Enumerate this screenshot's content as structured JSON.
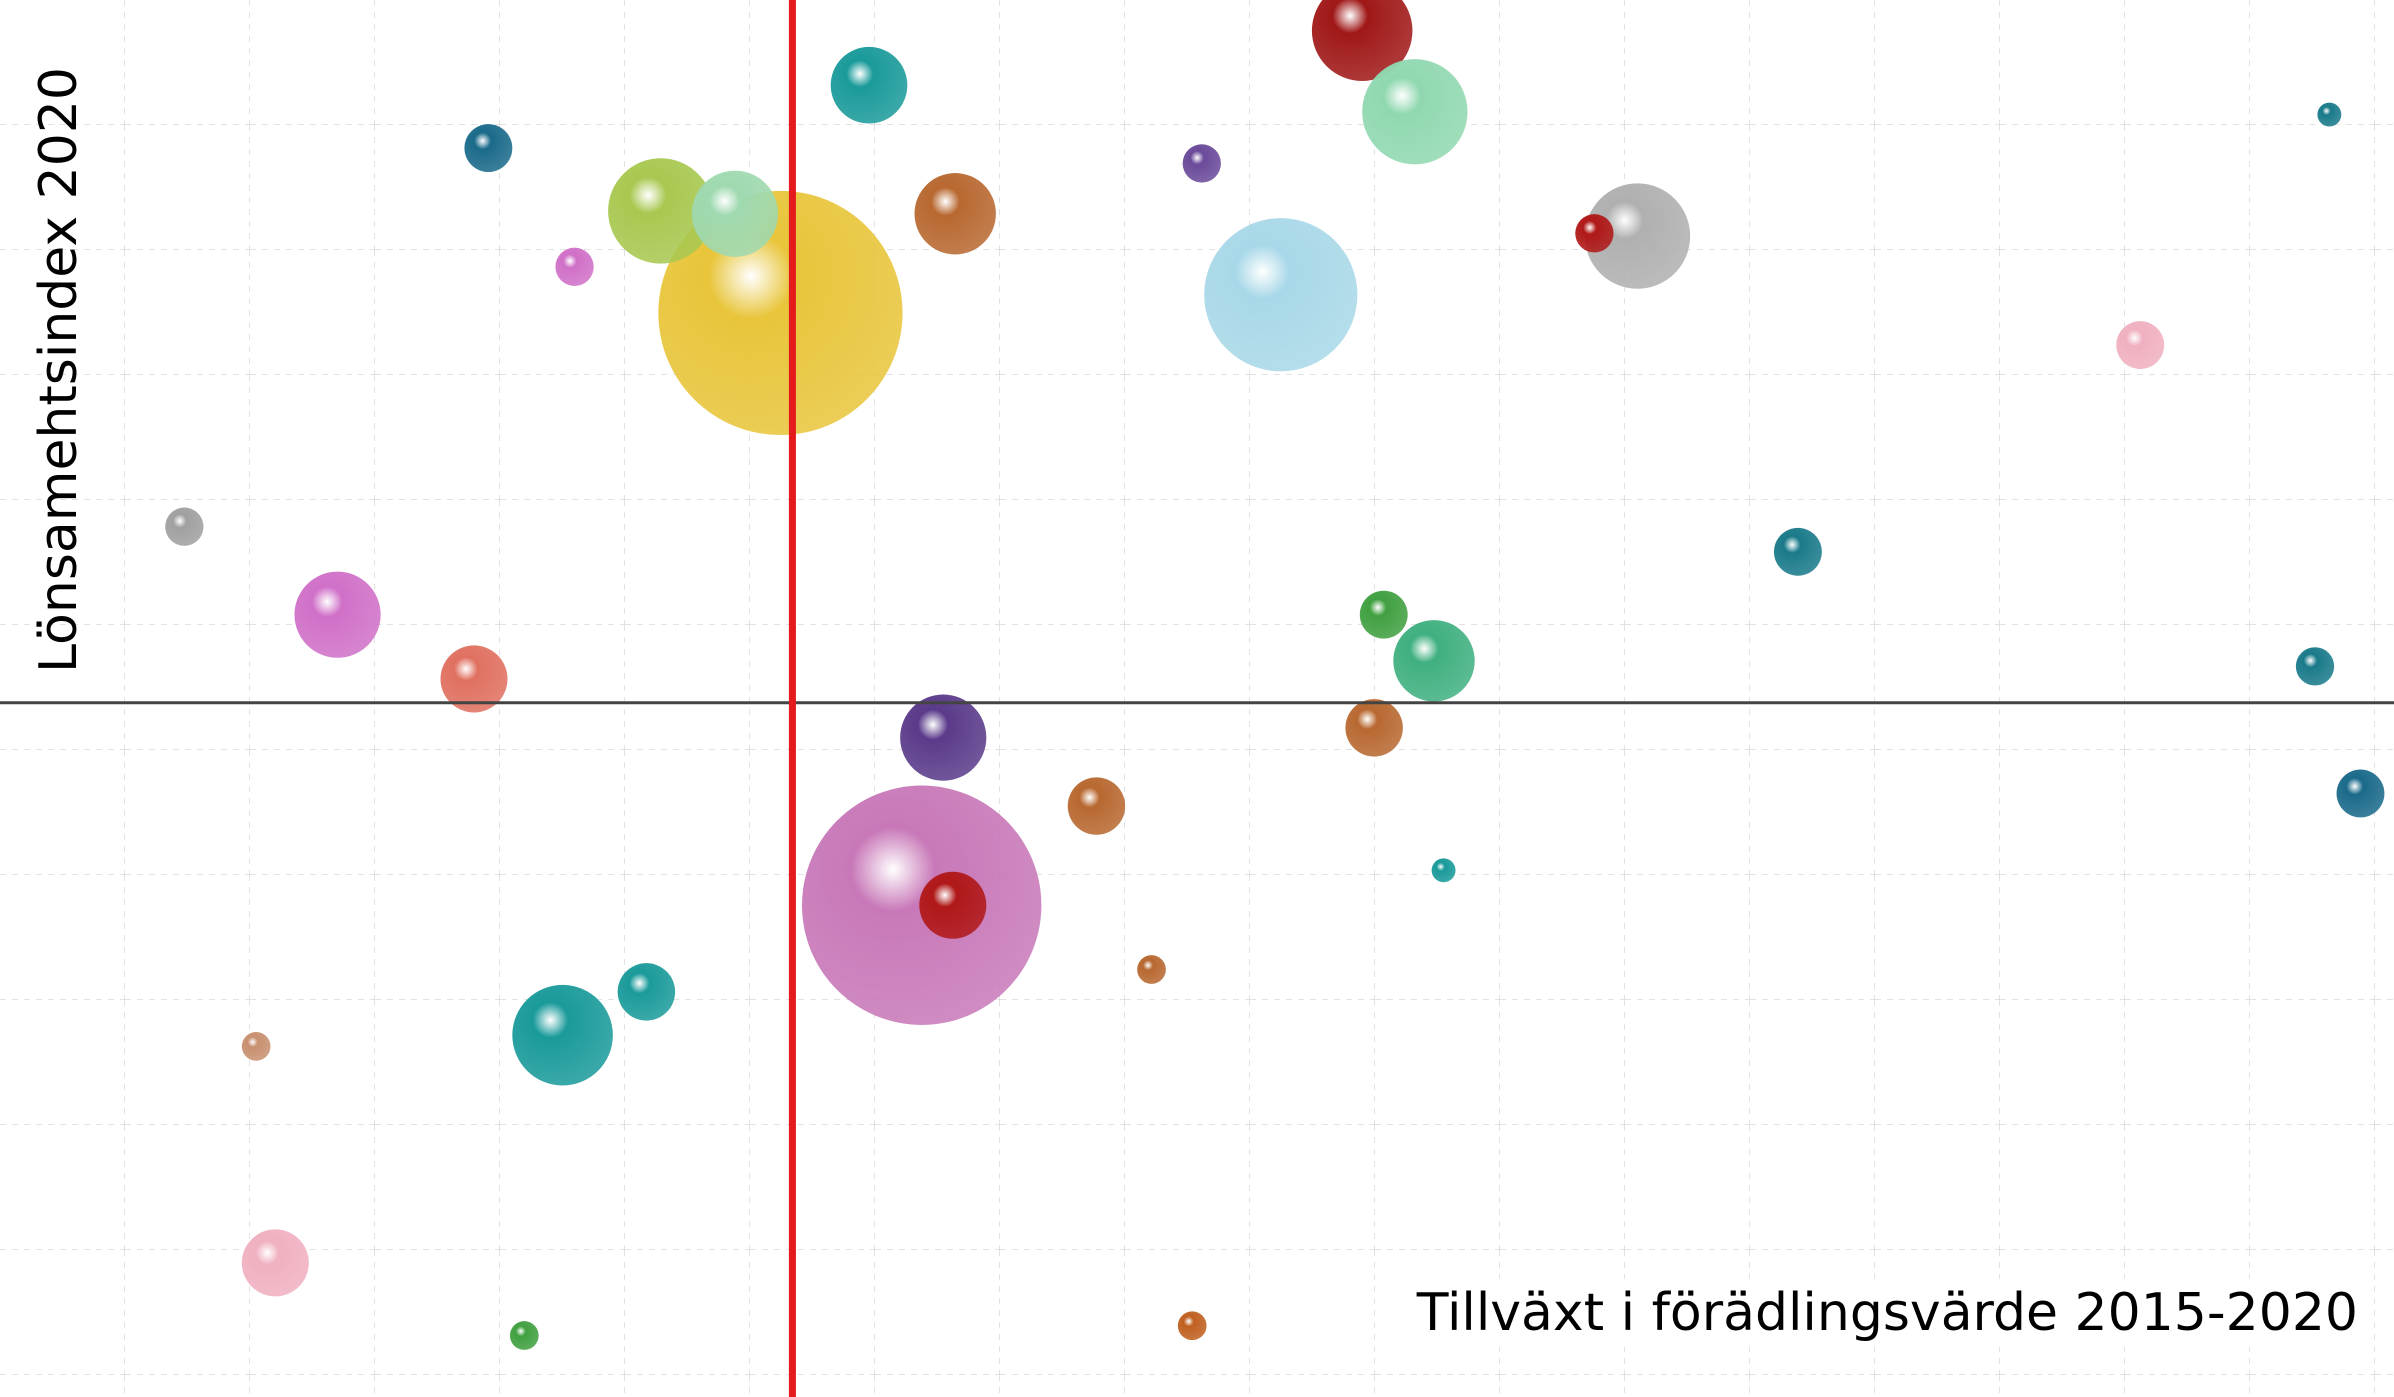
{
  "chart_data": {
    "type": "scatter",
    "x_label": "Tillväxt i förädlingsvärde 2015-2020",
    "y_label": "Lönsamehtsindex 2020",
    "xlim": [
      0,
      100
    ],
    "ylim": [
      0,
      100
    ],
    "x_reference": 33.1,
    "x_reference_color": "#e41a1c",
    "y_reference": 49.7,
    "y_reference_color": "#444444",
    "grid": true,
    "x": [
      32.6,
      38.5,
      27.6,
      30.7,
      36.3,
      56.9,
      59.1,
      68.4,
      53.5,
      39.9,
      14.1,
      23.5,
      27.0,
      11.5,
      20.4,
      19.8,
      39.4,
      59.9,
      57.4,
      45.8,
      39.8,
      7.7,
      75.1,
      98.6,
      96.7,
      89.4,
      49.8,
      21.9,
      10.7,
      66.6,
      50.2,
      57.8,
      24.0,
      97.3,
      48.1,
      60.3
    ],
    "values": [
      77.6,
      35.2,
      84.9,
      84.7,
      93.9,
      97.8,
      92.0,
      83.1,
      78.9,
      84.7,
      56.0,
      25.9,
      29.0,
      9.6,
      89.4,
      51.4,
      47.2,
      52.7,
      47.9,
      42.3,
      35.2,
      62.3,
      60.5,
      43.2,
      52.3,
      75.3,
      5.1,
      4.4,
      25.1,
      83.3,
      88.3,
      56.0,
      80.9,
      91.8,
      30.6,
      37.7
    ],
    "sizes": [
      5.1,
      5.0,
      2.2,
      1.8,
      1.6,
      2.1,
      2.2,
      2.2,
      3.2,
      1.7,
      1.8,
      2.1,
      1.2,
      1.4,
      1.0,
      1.4,
      1.8,
      1.7,
      1.2,
      1.2,
      1.4,
      0.8,
      1.0,
      1.0,
      0.8,
      1.0,
      0.6,
      0.6,
      0.6,
      0.8,
      0.8,
      1.0,
      0.8,
      0.5,
      0.6,
      0.5
    ],
    "colors": [
      "#e8c53a",
      "#c878b8",
      "#a8c850",
      "#9fd9b0",
      "#1a9a9a",
      "#a01818",
      "#90d8b0",
      "#b0b0b0",
      "#a8d8e8",
      "#b86830",
      "#d070c8",
      "#1a9a9a",
      "#1a9a9a",
      "#f0b0c0",
      "#1a6a8a",
      "#e07060",
      "#5a3a8a",
      "#40b080",
      "#b86830",
      "#b86830",
      "#b01818",
      "#a0a0a0",
      "#1a7a8a",
      "#1a6a8a",
      "#1a7a8a",
      "#f0b0c0",
      "#c06020",
      "#40a040",
      "#c89070",
      "#b01818",
      "#6a4a9a",
      "#40a040",
      "#d070c8",
      "#1a7a8a",
      "#b86830",
      "#1a9a9a"
    ]
  }
}
